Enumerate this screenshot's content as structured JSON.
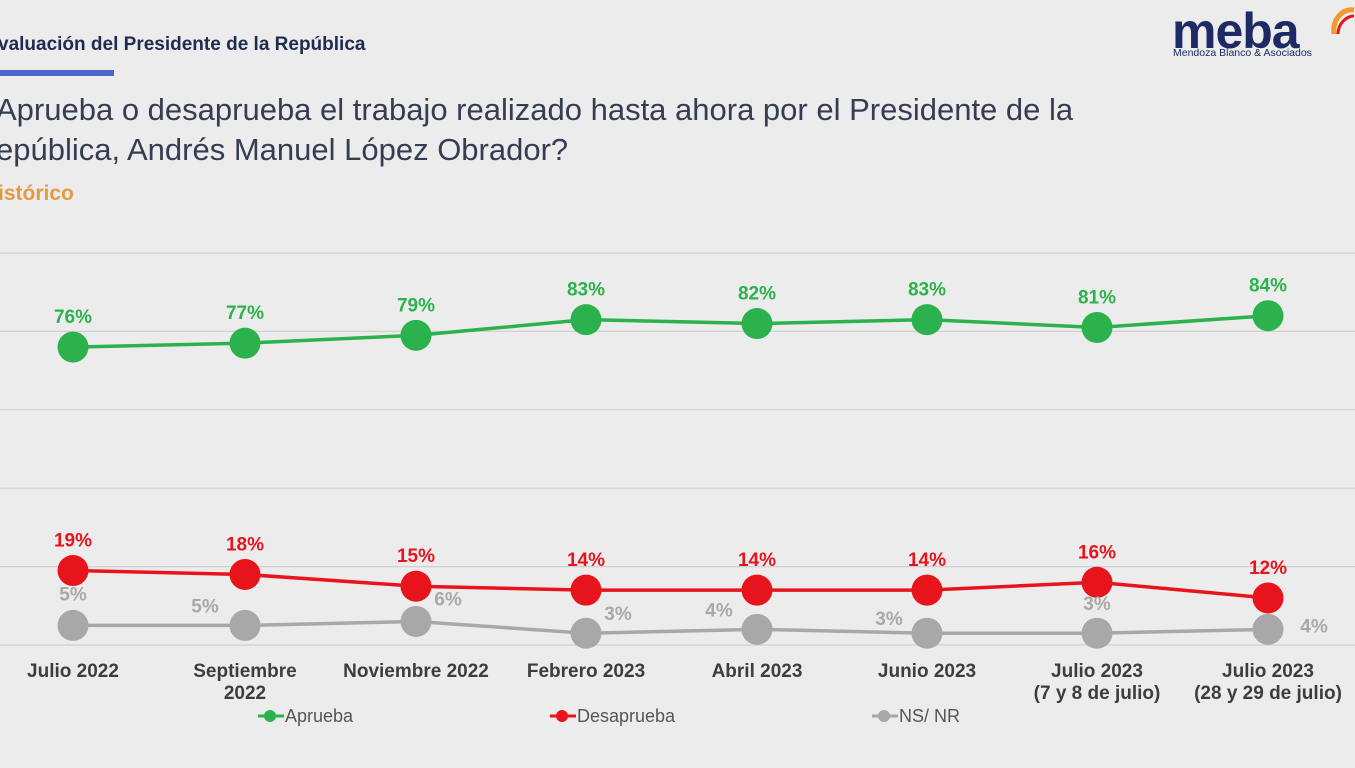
{
  "header": {
    "section_title": "valuación del Presidente de la República",
    "question_line1": "Aprueba o desaprueba el trabajo realizado hasta ahora por el Presidente de la",
    "question_line2": "epública, Andrés Manuel López Obrador?",
    "subtitle": "istórico"
  },
  "logo": {
    "word": "meba",
    "tagline": "Mendoza Blanco & Asociados"
  },
  "colors": {
    "aprueba": "#2bb24c",
    "desaprueba": "#e8141b",
    "nsnr": "#a8a8a8",
    "gridline": "#d0d0d0",
    "accent_blue": "#4a68c8",
    "accent_orange": "#e39a45"
  },
  "chart_data": {
    "type": "line",
    "categories": [
      [
        "Julio 2022"
      ],
      [
        "Septiembre",
        "2022"
      ],
      [
        "Noviembre 2022"
      ],
      [
        "Febrero 2023"
      ],
      [
        "Abril 2023"
      ],
      [
        "Junio 2023"
      ],
      [
        "Julio 2023",
        "(7 y 8 de julio)"
      ],
      [
        "Julio 2023",
        "(28 y 29 de julio)"
      ]
    ],
    "series": [
      {
        "name": "Aprueba",
        "values": [
          76,
          77,
          79,
          83,
          82,
          83,
          81,
          84
        ],
        "labels": [
          "76%",
          "77%",
          "79%",
          "83%",
          "82%",
          "83%",
          "81%",
          "84%"
        ]
      },
      {
        "name": "Desaprueba",
        "values": [
          19,
          18,
          15,
          14,
          14,
          14,
          16,
          12
        ],
        "labels": [
          "19%",
          "18%",
          "15%",
          "14%",
          "14%",
          "14%",
          "16%",
          "12%"
        ]
      },
      {
        "name": "NS/ NR",
        "values": [
          5,
          5,
          6,
          3,
          4,
          3,
          3,
          4
        ],
        "labels": [
          "5%",
          "5%",
          "6%",
          "3%",
          "4%",
          "3%",
          "3%",
          "4%"
        ]
      }
    ],
    "ylim": [
      0,
      100
    ],
    "grid": true,
    "legend_position": "bottom",
    "title": "",
    "xlabel": "",
    "ylabel": ""
  }
}
